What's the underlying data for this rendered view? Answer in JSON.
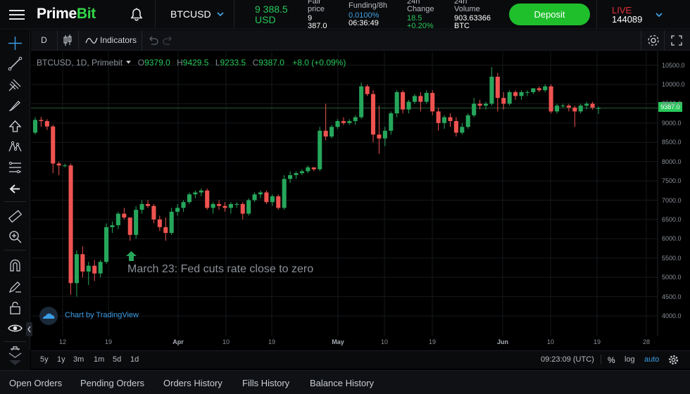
{
  "header": {
    "logo_prime": "Prime",
    "logo_bit": "Bit",
    "symbol": "BTCUSD",
    "price": "9 388.5",
    "price_currency": "USD",
    "fair_label_1": "Fair",
    "fair_label_2": "price",
    "fair_value_1": "9",
    "fair_value_2": "387.0",
    "funding_label": "Funding/8h",
    "funding_rate": "0.0100%",
    "funding_timer": "06:36:49",
    "change_label_1": "24h",
    "change_label_2": "Change",
    "change_value": "18.5",
    "change_pct": "+0.20%",
    "volume_label_1": "24h",
    "volume_label_2": "Volume",
    "volume_value": "903.63366",
    "volume_unit": "BTC",
    "deposit_label": "Deposit",
    "mode": "LIVE",
    "account_id": "144089",
    "accent": "#1fbf2c",
    "live_color": "#e0303a"
  },
  "toolbar": {
    "interval": "D",
    "indicators_label": "Indicators"
  },
  "legend": {
    "symbol": "BTCUSD, 1D, Primebit",
    "o_label": "O",
    "o_value": "9379.0",
    "h_label": "H",
    "h_value": "9429.5",
    "l_label": "L",
    "l_value": "9233.5",
    "c_label": "C",
    "c_value": "9387.0",
    "change": "+8.0 (+0.09%)"
  },
  "annotation": "March 23: Fed cuts rate close to zero",
  "tradingview_label": "Chart by TradingView",
  "range_buttons": [
    "5y",
    "1y",
    "3m",
    "1m",
    "5d",
    "1d"
  ],
  "time_display": "09:23:09 (UTC)",
  "scale_opts": {
    "pct": "%",
    "log": "log",
    "auto": "auto"
  },
  "bottom_tabs": [
    "Open Orders",
    "Pending Orders",
    "Orders History",
    "Fills History",
    "Balance History"
  ],
  "chart_data": {
    "type": "candlestick",
    "symbol": "BTCUSD",
    "interval": "1D",
    "y_ticks": [
      10500,
      10000,
      9500,
      9000,
      8500,
      8000,
      7500,
      7000,
      6500,
      6000,
      5500,
      5000,
      4500,
      4000
    ],
    "ylim": [
      3700,
      10700
    ],
    "last_price": "9387.0",
    "x_ticks": [
      {
        "label": "12",
        "bold": false
      },
      {
        "label": "19",
        "bold": false
      },
      {
        "label": "Apr",
        "bold": true
      },
      {
        "label": "10",
        "bold": false
      },
      {
        "label": "19",
        "bold": false
      },
      {
        "label": "May",
        "bold": true
      },
      {
        "label": "10",
        "bold": false
      },
      {
        "label": "19",
        "bold": false
      },
      {
        "label": "Jun",
        "bold": true
      },
      {
        "label": "10",
        "bold": false
      },
      {
        "label": "19",
        "bold": false
      },
      {
        "label": "28",
        "bold": false
      }
    ],
    "candles": [
      [
        8750,
        9150,
        8700,
        9080
      ],
      [
        9080,
        9160,
        8900,
        9050
      ],
      [
        9050,
        9100,
        8820,
        8910
      ],
      [
        8910,
        8950,
        7700,
        7950
      ],
      [
        7950,
        8000,
        7650,
        7900
      ],
      [
        7900,
        7950,
        7850,
        7900
      ],
      [
        7900,
        7950,
        4550,
        4850
      ],
      [
        4850,
        5700,
        4500,
        5600
      ],
      [
        5600,
        5800,
        5000,
        5150
      ],
      [
        5150,
        5400,
        4800,
        5300
      ],
      [
        5300,
        5450,
        4900,
        5100
      ],
      [
        5100,
        5450,
        5000,
        5400
      ],
      [
        5400,
        6400,
        5350,
        6300
      ],
      [
        6300,
        6450,
        6150,
        6350
      ],
      [
        6350,
        6700,
        6250,
        6650
      ],
      [
        6650,
        6800,
        6500,
        6550
      ],
      [
        6550,
        6500,
        5950,
        6100
      ],
      [
        6100,
        6850,
        6000,
        6750
      ],
      [
        6750,
        7000,
        6650,
        6900
      ],
      [
        6900,
        7000,
        6800,
        6850
      ],
      [
        6850,
        6900,
        6400,
        6500
      ],
      [
        6500,
        6600,
        6200,
        6300
      ],
      [
        6300,
        6550,
        5950,
        6150
      ],
      [
        6150,
        6800,
        6100,
        6700
      ],
      [
        6700,
        6900,
        6600,
        6800
      ],
      [
        6800,
        7000,
        6700,
        6950
      ],
      [
        6950,
        7200,
        6900,
        7150
      ],
      [
        7150,
        7250,
        7050,
        7200
      ],
      [
        7200,
        7300,
        7100,
        7250
      ],
      [
        7250,
        7300,
        6750,
        6800
      ],
      [
        6800,
        6950,
        6650,
        6900
      ],
      [
        6900,
        7000,
        6750,
        6850
      ],
      [
        6850,
        6950,
        6700,
        6800
      ],
      [
        6800,
        6950,
        6650,
        6900
      ],
      [
        6900,
        6950,
        6800,
        6900
      ],
      [
        6900,
        6950,
        6500,
        6650
      ],
      [
        6650,
        7050,
        6600,
        7000
      ],
      [
        7000,
        7200,
        6950,
        7150
      ],
      [
        7150,
        7250,
        7050,
        7200
      ],
      [
        7200,
        7250,
        6900,
        6950
      ],
      [
        6950,
        7150,
        6850,
        7100
      ],
      [
        7100,
        7150,
        6750,
        6800
      ],
      [
        6800,
        7650,
        6750,
        7550
      ],
      [
        7550,
        7750,
        7450,
        7650
      ],
      [
        7650,
        7750,
        7550,
        7700
      ],
      [
        7700,
        7800,
        7650,
        7750
      ],
      [
        7750,
        7900,
        7700,
        7850
      ],
      [
        7850,
        7850,
        7750,
        7800
      ],
      [
        7800,
        8900,
        7750,
        8800
      ],
      [
        8800,
        9500,
        8550,
        8650
      ],
      [
        8650,
        8950,
        8600,
        8900
      ],
      [
        8900,
        9100,
        8850,
        9050
      ],
      [
        9050,
        9150,
        8950,
        9000
      ],
      [
        9000,
        9100,
        8950,
        9050
      ],
      [
        9050,
        9200,
        8950,
        9150
      ],
      [
        9150,
        10050,
        9100,
        9950
      ],
      [
        9950,
        10000,
        9700,
        9750
      ],
      [
        9750,
        9850,
        8500,
        8700
      ],
      [
        8700,
        9450,
        8200,
        8600
      ],
      [
        8600,
        8900,
        8400,
        8800
      ],
      [
        8800,
        9300,
        8700,
        9250
      ],
      [
        9250,
        9850,
        9150,
        9800
      ],
      [
        9800,
        9850,
        9250,
        9350
      ],
      [
        9350,
        9600,
        9250,
        9550
      ],
      [
        9550,
        9750,
        9500,
        9700
      ],
      [
        9700,
        9800,
        9300,
        9550
      ],
      [
        9550,
        9850,
        9500,
        9780
      ],
      [
        9780,
        9850,
        9200,
        9300
      ],
      [
        9300,
        9400,
        8800,
        9000
      ],
      [
        9000,
        9200,
        8850,
        9150
      ],
      [
        9150,
        9250,
        8900,
        9050
      ],
      [
        9050,
        9150,
        8650,
        8750
      ],
      [
        8750,
        9000,
        8700,
        8900
      ],
      [
        8900,
        9250,
        8850,
        9200
      ],
      [
        9200,
        9650,
        9150,
        9500
      ],
      [
        9500,
        9600,
        9350,
        9450
      ],
      [
        9450,
        9550,
        9350,
        9500
      ],
      [
        9500,
        10450,
        9450,
        10200
      ],
      [
        10200,
        10300,
        9300,
        9650
      ],
      [
        9650,
        9800,
        9350,
        9500
      ],
      [
        9500,
        9850,
        9450,
        9800
      ],
      [
        9800,
        9850,
        9600,
        9700
      ],
      [
        9700,
        9850,
        9600,
        9800
      ],
      [
        9800,
        9850,
        9700,
        9800
      ],
      [
        9800,
        9900,
        9750,
        9900
      ],
      [
        9900,
        9950,
        9800,
        9850
      ],
      [
        9850,
        10000,
        9800,
        9950
      ],
      [
        9950,
        10000,
        9250,
        9300
      ],
      [
        9300,
        9500,
        9250,
        9450
      ],
      [
        9450,
        9500,
        9400,
        9450
      ],
      [
        9450,
        9500,
        9300,
        9400
      ],
      [
        9400,
        9450,
        8900,
        9300
      ],
      [
        9300,
        9500,
        9250,
        9450
      ],
      [
        9450,
        9550,
        9350,
        9500
      ],
      [
        9500,
        9550,
        9350,
        9400
      ],
      [
        9379,
        9429.5,
        9233.5,
        9387
      ]
    ],
    "up_color": "#26a65b",
    "down_color": "#ef5350"
  }
}
